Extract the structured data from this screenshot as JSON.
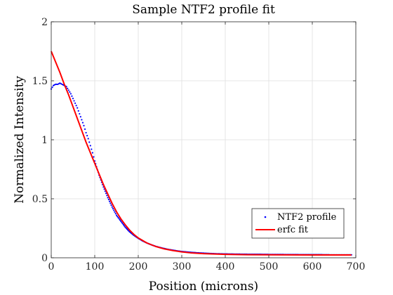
{
  "chart_data": {
    "type": "line",
    "title": "Sample NTF2 profile fit",
    "xlabel": "Position (microns)",
    "ylabel": "Normalized Intensity",
    "xlim": [
      0,
      700
    ],
    "ylim": [
      0,
      2
    ],
    "x_ticks": [
      0,
      100,
      200,
      300,
      400,
      500,
      600,
      700
    ],
    "y_ticks": [
      0,
      0.5,
      1,
      1.5,
      2
    ],
    "x_tick_labels": [
      "0",
      "100",
      "200",
      "300",
      "400",
      "500",
      "600",
      "700"
    ],
    "y_tick_labels": [
      "0",
      "0.5",
      "1",
      "1.5",
      "2"
    ],
    "grid": true,
    "legend_position": "bottom-right",
    "series": [
      {
        "name": "NTF2 profile",
        "style": "points",
        "color": "#0000ff",
        "points": [
          [
            0,
            1.43
          ],
          [
            5,
            1.46
          ],
          [
            10,
            1.47
          ],
          [
            15,
            1.47
          ],
          [
            20,
            1.48
          ],
          [
            25,
            1.47
          ],
          [
            30,
            1.46
          ],
          [
            35,
            1.45
          ],
          [
            40,
            1.42
          ],
          [
            45,
            1.39
          ],
          [
            50,
            1.35
          ],
          [
            55,
            1.31
          ],
          [
            60,
            1.27
          ],
          [
            65,
            1.22
          ],
          [
            70,
            1.17
          ],
          [
            75,
            1.12
          ],
          [
            80,
            1.06
          ],
          [
            85,
            1.01
          ],
          [
            90,
            0.95
          ],
          [
            95,
            0.89
          ],
          [
            100,
            0.82
          ],
          [
            110,
            0.7
          ],
          [
            120,
            0.6
          ],
          [
            130,
            0.51
          ],
          [
            140,
            0.43
          ],
          [
            150,
            0.36
          ],
          [
            160,
            0.31
          ],
          [
            170,
            0.26
          ],
          [
            180,
            0.22
          ],
          [
            190,
            0.19
          ],
          [
            200,
            0.165
          ],
          [
            210,
            0.143
          ],
          [
            220,
            0.125
          ],
          [
            230,
            0.11
          ],
          [
            240,
            0.097
          ],
          [
            250,
            0.087
          ],
          [
            260,
            0.078
          ],
          [
            270,
            0.07
          ],
          [
            280,
            0.064
          ],
          [
            290,
            0.058
          ],
          [
            300,
            0.053
          ],
          [
            320,
            0.046
          ],
          [
            340,
            0.041
          ],
          [
            360,
            0.037
          ],
          [
            380,
            0.034
          ],
          [
            400,
            0.032
          ],
          [
            420,
            0.031
          ],
          [
            440,
            0.03
          ],
          [
            460,
            0.029
          ],
          [
            480,
            0.029
          ],
          [
            500,
            0.028
          ],
          [
            520,
            0.028
          ],
          [
            540,
            0.027
          ],
          [
            560,
            0.027
          ],
          [
            580,
            0.026
          ],
          [
            600,
            0.026
          ],
          [
            620,
            0.026
          ],
          [
            640,
            0.025
          ],
          [
            660,
            0.025
          ],
          [
            680,
            0.025
          ],
          [
            690,
            0.025
          ]
        ]
      },
      {
        "name": "erfc fit",
        "style": "line",
        "color": "#ff0000",
        "points": [
          [
            0,
            1.75
          ],
          [
            10,
            1.66
          ],
          [
            20,
            1.57
          ],
          [
            30,
            1.47
          ],
          [
            40,
            1.38
          ],
          [
            50,
            1.28
          ],
          [
            60,
            1.18
          ],
          [
            70,
            1.08
          ],
          [
            80,
            0.98
          ],
          [
            90,
            0.89
          ],
          [
            100,
            0.8
          ],
          [
            110,
            0.71
          ],
          [
            120,
            0.62
          ],
          [
            130,
            0.54
          ],
          [
            140,
            0.46
          ],
          [
            150,
            0.39
          ],
          [
            160,
            0.33
          ],
          [
            170,
            0.28
          ],
          [
            180,
            0.235
          ],
          [
            190,
            0.198
          ],
          [
            200,
            0.168
          ],
          [
            220,
            0.125
          ],
          [
            240,
            0.096
          ],
          [
            260,
            0.075
          ],
          [
            280,
            0.061
          ],
          [
            300,
            0.05
          ],
          [
            320,
            0.042
          ],
          [
            350,
            0.035
          ],
          [
            400,
            0.029
          ],
          [
            450,
            0.026
          ],
          [
            500,
            0.025
          ],
          [
            600,
            0.024
          ],
          [
            690,
            0.024
          ]
        ]
      }
    ]
  }
}
